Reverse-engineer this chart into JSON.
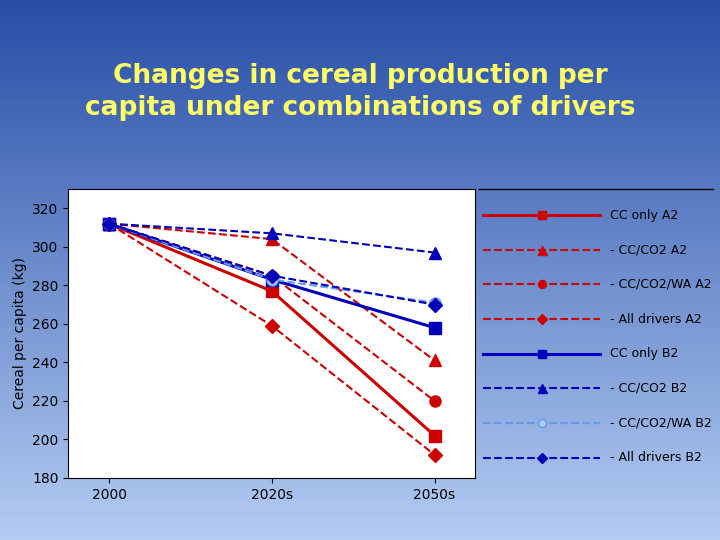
{
  "title": "Changes in cereal production per\ncapita under combinations of drivers",
  "title_color": "#FFFF66",
  "ylabel": "Cereal per capita (kg)",
  "x_labels": [
    "2000",
    "2020s",
    "2050s"
  ],
  "x_values": [
    0,
    1,
    2
  ],
  "ylim": [
    180,
    330
  ],
  "yticks": [
    180,
    200,
    220,
    240,
    260,
    280,
    300,
    320
  ],
  "series": [
    {
      "label": "CC only A2",
      "values": [
        312,
        277,
        202
      ],
      "color": "#CC0000",
      "linestyle": "solid",
      "marker": "s",
      "linewidth": 2.2,
      "markersize": 8,
      "markerfacecolor": "#CC0000"
    },
    {
      "label": "- CC/CO2 A2",
      "values": [
        312,
        304,
        241
      ],
      "color": "#CC0000",
      "linestyle": "dashed",
      "marker": "^",
      "linewidth": 1.5,
      "markersize": 9,
      "markerfacecolor": "#CC0000"
    },
    {
      "label": "- CC/CO2/WA A2",
      "values": [
        312,
        285,
        220
      ],
      "color": "#CC0000",
      "linestyle": "dashed",
      "marker": "o",
      "linewidth": 1.5,
      "markersize": 8,
      "markerfacecolor": "#CC0000"
    },
    {
      "label": "- All drivers A2",
      "values": [
        312,
        259,
        192
      ],
      "color": "#CC0000",
      "linestyle": "dashed",
      "marker": "D",
      "linewidth": 1.5,
      "markersize": 7,
      "markerfacecolor": "#CC0000"
    },
    {
      "label": "CC only B2",
      "values": [
        312,
        283,
        258
      ],
      "color": "#0000BB",
      "linestyle": "solid",
      "marker": "s",
      "linewidth": 2.2,
      "markersize": 8,
      "markerfacecolor": "#0000BB"
    },
    {
      "label": "- CC/CO2 B2",
      "values": [
        312,
        307,
        297
      ],
      "color": "#0000BB",
      "linestyle": "dashed",
      "marker": "^",
      "linewidth": 1.5,
      "markersize": 9,
      "markerfacecolor": "#0000BB"
    },
    {
      "label": "- CC/CO2/WA B2",
      "values": [
        312,
        283,
        271
      ],
      "color": "#6699EE",
      "linestyle": "dashed",
      "marker": "o",
      "linewidth": 1.5,
      "markersize": 8,
      "markerfacecolor": "#AACCFF"
    },
    {
      "label": "- All drivers B2",
      "values": [
        312,
        285,
        270
      ],
      "color": "#0000BB",
      "linestyle": "dashed",
      "marker": "D",
      "linewidth": 1.5,
      "markersize": 7,
      "markerfacecolor": "#0000BB"
    }
  ],
  "title_fontsize": 19,
  "axis_fontsize": 10,
  "legend_fontsize": 9,
  "fig_width": 7.2,
  "fig_height": 5.4,
  "dpi": 100
}
